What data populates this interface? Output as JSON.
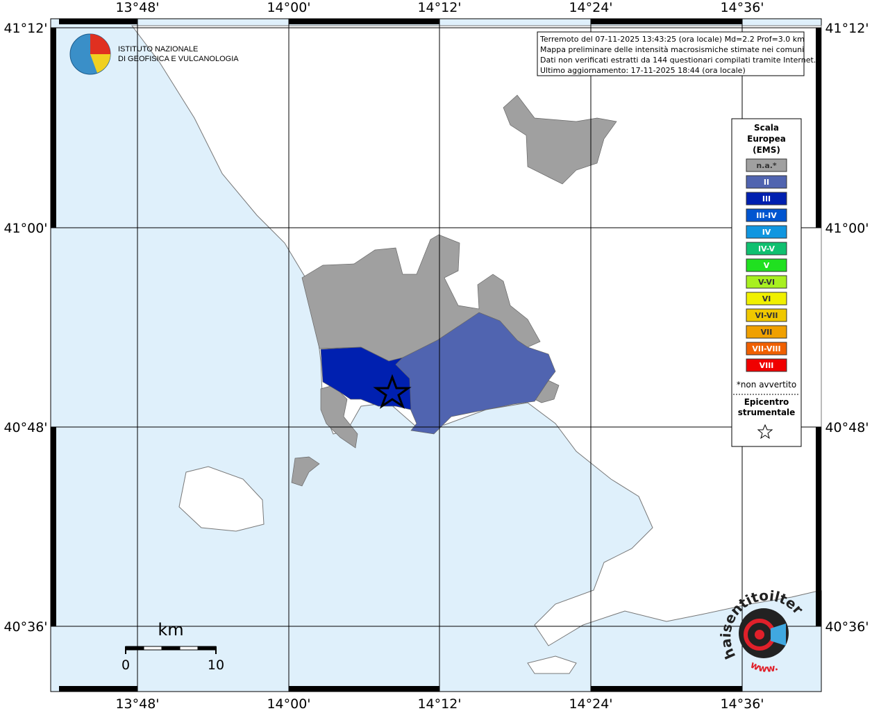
{
  "map": {
    "lon_labels": [
      "13°48'",
      "14°00'",
      "14°12'",
      "14°24'",
      "14°36'"
    ],
    "lat_labels": [
      "41°12'",
      "41°00'",
      "40°48'",
      "40°36'"
    ]
  },
  "logo": {
    "line1": "ISTITUTO NAZIONALE",
    "line2": "DI GEOFISICA E VULCANOLOGIA"
  },
  "info": {
    "lines": [
      "Terremoto del 07-11-2025 13:43:25 (ora locale) Md=2.2 Prof=3.0 km",
      "Mappa preliminare delle intensità macrosismiche stimate nei comuni",
      "Dati non verificati estratti da 144 questionari compilati tramite Internet.",
      "Ultimo aggiornamento: 17-11-2025 18:44 (ora locale)"
    ]
  },
  "legend": {
    "title": [
      "Scala",
      "Europea",
      "(EMS)"
    ],
    "items": [
      {
        "label": "n.a.*",
        "color": "#a0a0a0"
      },
      {
        "label": "II",
        "color": "#5064b0"
      },
      {
        "label": "III",
        "color": "#0020b0"
      },
      {
        "label": "III-IV",
        "color": "#0055d0"
      },
      {
        "label": "IV",
        "color": "#1096e0"
      },
      {
        "label": "IV-V",
        "color": "#10c070"
      },
      {
        "label": "V",
        "color": "#20e020"
      },
      {
        "label": "V-VI",
        "color": "#a8f020"
      },
      {
        "label": "VI",
        "color": "#f0f000"
      },
      {
        "label": "VI-VII",
        "color": "#f0c800"
      },
      {
        "label": "VII",
        "color": "#f0a000"
      },
      {
        "label": "VII-VIII",
        "color": "#f06000"
      },
      {
        "label": "VIII",
        "color": "#f00000"
      }
    ],
    "note": "*non avvertito",
    "epicenter": [
      "Epicentro",
      "strumentale"
    ]
  },
  "scale_bar": {
    "unit": "km",
    "labels": [
      "0",
      "10"
    ]
  },
  "badge": {
    "text": "haisentitoilterremoto.it",
    "www": "www."
  }
}
